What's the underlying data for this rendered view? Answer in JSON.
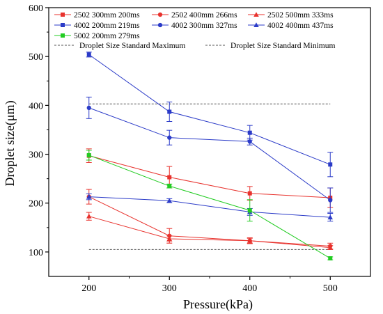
{
  "chart_data": {
    "type": "line",
    "xlabel": "Pressure(kPa)",
    "ylabel": "Droplet size(μm)",
    "xlim": [
      150,
      550
    ],
    "ylim": [
      50,
      600
    ],
    "x_ticks": [
      "200",
      "300",
      "400",
      "500"
    ],
    "y_ticks": [
      "100",
      "200",
      "300",
      "400",
      "500",
      "600"
    ],
    "x_tick_values": [
      200,
      300,
      400,
      500
    ],
    "y_tick_values": [
      100,
      200,
      300,
      400,
      500,
      600
    ],
    "grid": false,
    "legend_position": "top-left",
    "series": [
      {
        "name": "2502 300mm 200ms",
        "color": "#e8322d",
        "marker": "square",
        "x": [
          200,
          300,
          400,
          500
        ],
        "y": [
          297,
          253,
          220,
          211
        ],
        "err": [
          14,
          22,
          14,
          20
        ]
      },
      {
        "name": "2502 400mm 266ms",
        "color": "#e8322d",
        "marker": "circle",
        "x": [
          200,
          300,
          400,
          500
        ],
        "y": [
          213,
          133,
          123,
          112
        ],
        "err": [
          15,
          15,
          6,
          6
        ]
      },
      {
        "name": "2502 500mm 333ms",
        "color": "#e8322d",
        "marker": "triangle",
        "x": [
          200,
          300,
          400,
          500
        ],
        "y": [
          173,
          127,
          123,
          109
        ],
        "err": [
          8,
          6,
          5,
          4
        ]
      },
      {
        "name": "4002 200mm 219ms",
        "color": "#2b3bc8",
        "marker": "square",
        "x": [
          200,
          300,
          400,
          500
        ],
        "y": [
          504,
          387,
          344,
          279
        ],
        "err": [
          5,
          20,
          15,
          25
        ]
      },
      {
        "name": "4002 300mm 327ms",
        "color": "#2b3bc8",
        "marker": "circle",
        "x": [
          200,
          300,
          400,
          500
        ],
        "y": [
          395,
          334,
          326,
          206
        ],
        "err": [
          22,
          15,
          7,
          25
        ]
      },
      {
        "name": "4002 400mm 437ms",
        "color": "#2b3bc8",
        "marker": "triangle",
        "x": [
          200,
          300,
          400,
          500
        ],
        "y": [
          213,
          205,
          182,
          171
        ],
        "err": [
          6,
          4,
          7,
          8
        ]
      },
      {
        "name": "5002 200mm 279ms",
        "color": "#22cc22",
        "marker": "square",
        "x": [
          200,
          300,
          400,
          500
        ],
        "y": [
          298,
          235,
          185,
          87
        ],
        "err": [
          10,
          4,
          22,
          3
        ]
      }
    ],
    "reference_lines": [
      {
        "name": "Droplet Size Standard Maximum",
        "y": 403,
        "x_range": [
          200,
          500
        ],
        "color": "#555555",
        "style": "dashed"
      },
      {
        "name": "Droplet Size Standard Minimum",
        "y": 105,
        "x_range": [
          200,
          500
        ],
        "color": "#555555",
        "style": "dashed"
      }
    ]
  }
}
